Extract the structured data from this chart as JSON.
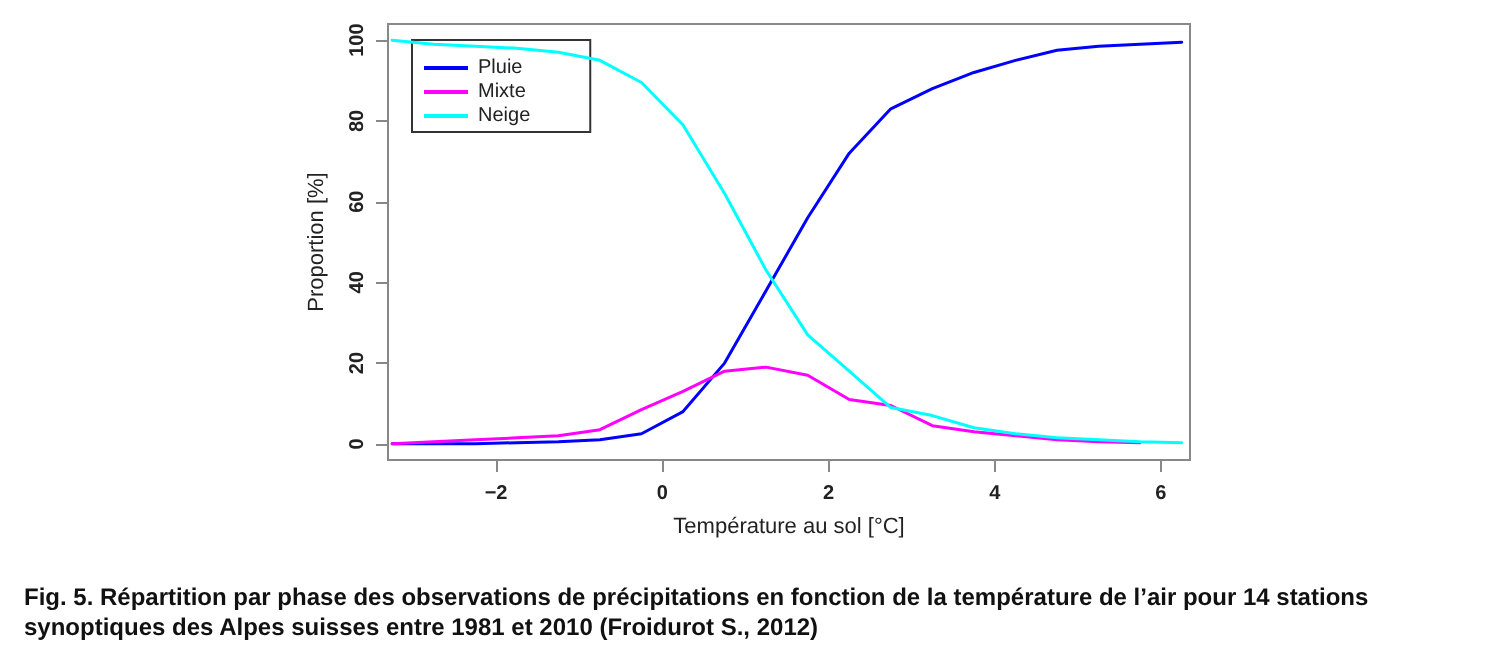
{
  "chart_data": {
    "type": "line",
    "xlabel": "Température au sol [°C]",
    "ylabel": "Proportion [%]",
    "x": [
      -3.25,
      -2.75,
      -2.25,
      -1.75,
      -1.25,
      -0.75,
      -0.25,
      0.25,
      0.75,
      1.25,
      1.75,
      2.25,
      2.75,
      3.25,
      3.75,
      4.25,
      4.75,
      5.25,
      5.75,
      6.25
    ],
    "series": [
      {
        "name": "Pluie",
        "color": "#0000ff",
        "values": [
          0,
          0,
          0,
          0.3,
          0.5,
          1,
          2.5,
          8,
          20,
          38,
          56,
          72,
          83,
          88,
          92,
          95,
          97.5,
          98.5,
          99,
          99.5
        ]
      },
      {
        "name": "Mixte",
        "color": "#ff00ff",
        "values": [
          0,
          0.5,
          1,
          1.5,
          2,
          3.5,
          8.5,
          13,
          18,
          19,
          17,
          11,
          9.5,
          4.5,
          3,
          2,
          1,
          0.5,
          0.3,
          null
        ]
      },
      {
        "name": "Neige",
        "color": "#00ffff",
        "values": [
          100,
          99,
          98.5,
          98,
          97,
          95,
          89.5,
          79,
          62,
          43,
          27,
          18,
          9,
          7,
          4,
          2.5,
          1.5,
          1,
          0.5,
          0.3
        ]
      }
    ],
    "xlim": [
      -3.3,
      6.35
    ],
    "xticks": [
      -2,
      0,
      2,
      4,
      6
    ],
    "ylim": [
      -4,
      104
    ],
    "yticks": [
      0,
      20,
      40,
      60,
      80,
      100
    ],
    "grid": false,
    "legend": "top left",
    "marker": "none",
    "line_style": "solid",
    "annotations": [
      "Fig. 5. Répartition par phase des observations de précipitations en fonction de la température de l’air pour 14 stations synoptiques des Alpes suisses entre 1981 et 2010 (Froidurot S., 2012)"
    ]
  }
}
